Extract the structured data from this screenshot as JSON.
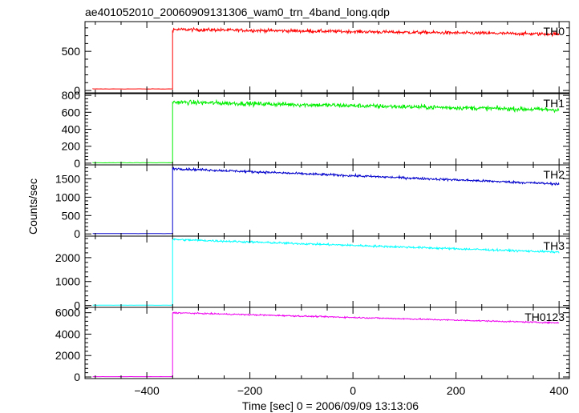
{
  "chart_data": {
    "type": "line",
    "title": "ae401052010_20060909131306_wam0_trn_4band_long.qdp",
    "xlabel": "Time [sec] 0 = 2006/09/09 13:13:06",
    "ylabel": "Counts/sec",
    "xlim": [
      -520,
      420
    ],
    "x_ticks": [
      -400,
      -200,
      0,
      200,
      400
    ],
    "x_tick_labels": [
      "−400",
      "−200",
      "0",
      "200",
      "400"
    ],
    "step_time": -350,
    "x_start": -505,
    "x_end": 400,
    "panels": [
      {
        "name": "TH0",
        "color": "#ff0000",
        "ylim": [
          -30,
          880
        ],
        "y_ticks": [
          0,
          500
        ],
        "pre_level": 20,
        "start_level": 780,
        "end_level": 720,
        "noise": 20
      },
      {
        "name": "TH1",
        "color": "#00ee00",
        "ylim": [
          -20,
          820
        ],
        "y_ticks": [
          0,
          200,
          400,
          600,
          800
        ],
        "pre_level": 5,
        "start_level": 720,
        "end_level": 630,
        "noise": 25
      },
      {
        "name": "TH2",
        "color": "#0000cc",
        "ylim": [
          -60,
          1880
        ],
        "y_ticks": [
          0,
          500,
          1000,
          1500
        ],
        "pre_level": 10,
        "start_level": 1780,
        "end_level": 1360,
        "noise": 30
      },
      {
        "name": "TH3",
        "color": "#00ffff",
        "ylim": [
          -80,
          2900
        ],
        "y_ticks": [
          0,
          1000,
          2000
        ],
        "pre_level": 10,
        "start_level": 2760,
        "end_level": 2230,
        "noise": 40
      },
      {
        "name": "TH0123",
        "color": "#ee00ee",
        "ylim": [
          -150,
          6500
        ],
        "y_ticks": [
          0,
          2000,
          4000,
          6000
        ],
        "pre_level": 30,
        "start_level": 6000,
        "end_level": 5050,
        "noise": 60
      }
    ]
  }
}
